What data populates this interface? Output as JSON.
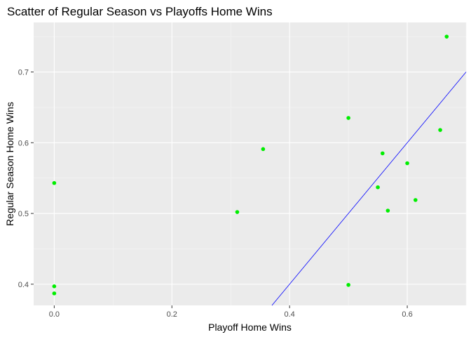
{
  "chart_data": {
    "type": "scatter",
    "title": "Scatter of Regular Season vs Playoffs Home Wins",
    "xlabel": "Playoff Home Wins",
    "ylabel": "Regular Season Home Wins",
    "xlim": [
      -0.035,
      0.7
    ],
    "ylim": [
      0.37,
      0.77
    ],
    "x_ticks": [
      0.0,
      0.2,
      0.4,
      0.6
    ],
    "x_tick_labels": [
      "0.0",
      "0.2",
      "0.4",
      "0.6"
    ],
    "y_ticks": [
      0.4,
      0.5,
      0.6,
      0.7
    ],
    "y_tick_labels": [
      "0.4",
      "0.5",
      "0.6",
      "0.7"
    ],
    "grid": true,
    "point_color": "#00ee00",
    "panel_background": "#ebebeb",
    "points": [
      {
        "x": 0.0,
        "y": 0.543
      },
      {
        "x": 0.0,
        "y": 0.397
      },
      {
        "x": 0.0,
        "y": 0.387
      },
      {
        "x": 0.311,
        "y": 0.502
      },
      {
        "x": 0.355,
        "y": 0.591
      },
      {
        "x": 0.5,
        "y": 0.635
      },
      {
        "x": 0.5,
        "y": 0.399
      },
      {
        "x": 0.55,
        "y": 0.537
      },
      {
        "x": 0.558,
        "y": 0.585
      },
      {
        "x": 0.567,
        "y": 0.504
      },
      {
        "x": 0.6,
        "y": 0.571
      },
      {
        "x": 0.614,
        "y": 0.519
      },
      {
        "x": 0.656,
        "y": 0.618
      },
      {
        "x": 0.667,
        "y": 0.75
      }
    ],
    "reference_line": {
      "slope": 1,
      "intercept": 0,
      "color": "#0000ff"
    }
  }
}
